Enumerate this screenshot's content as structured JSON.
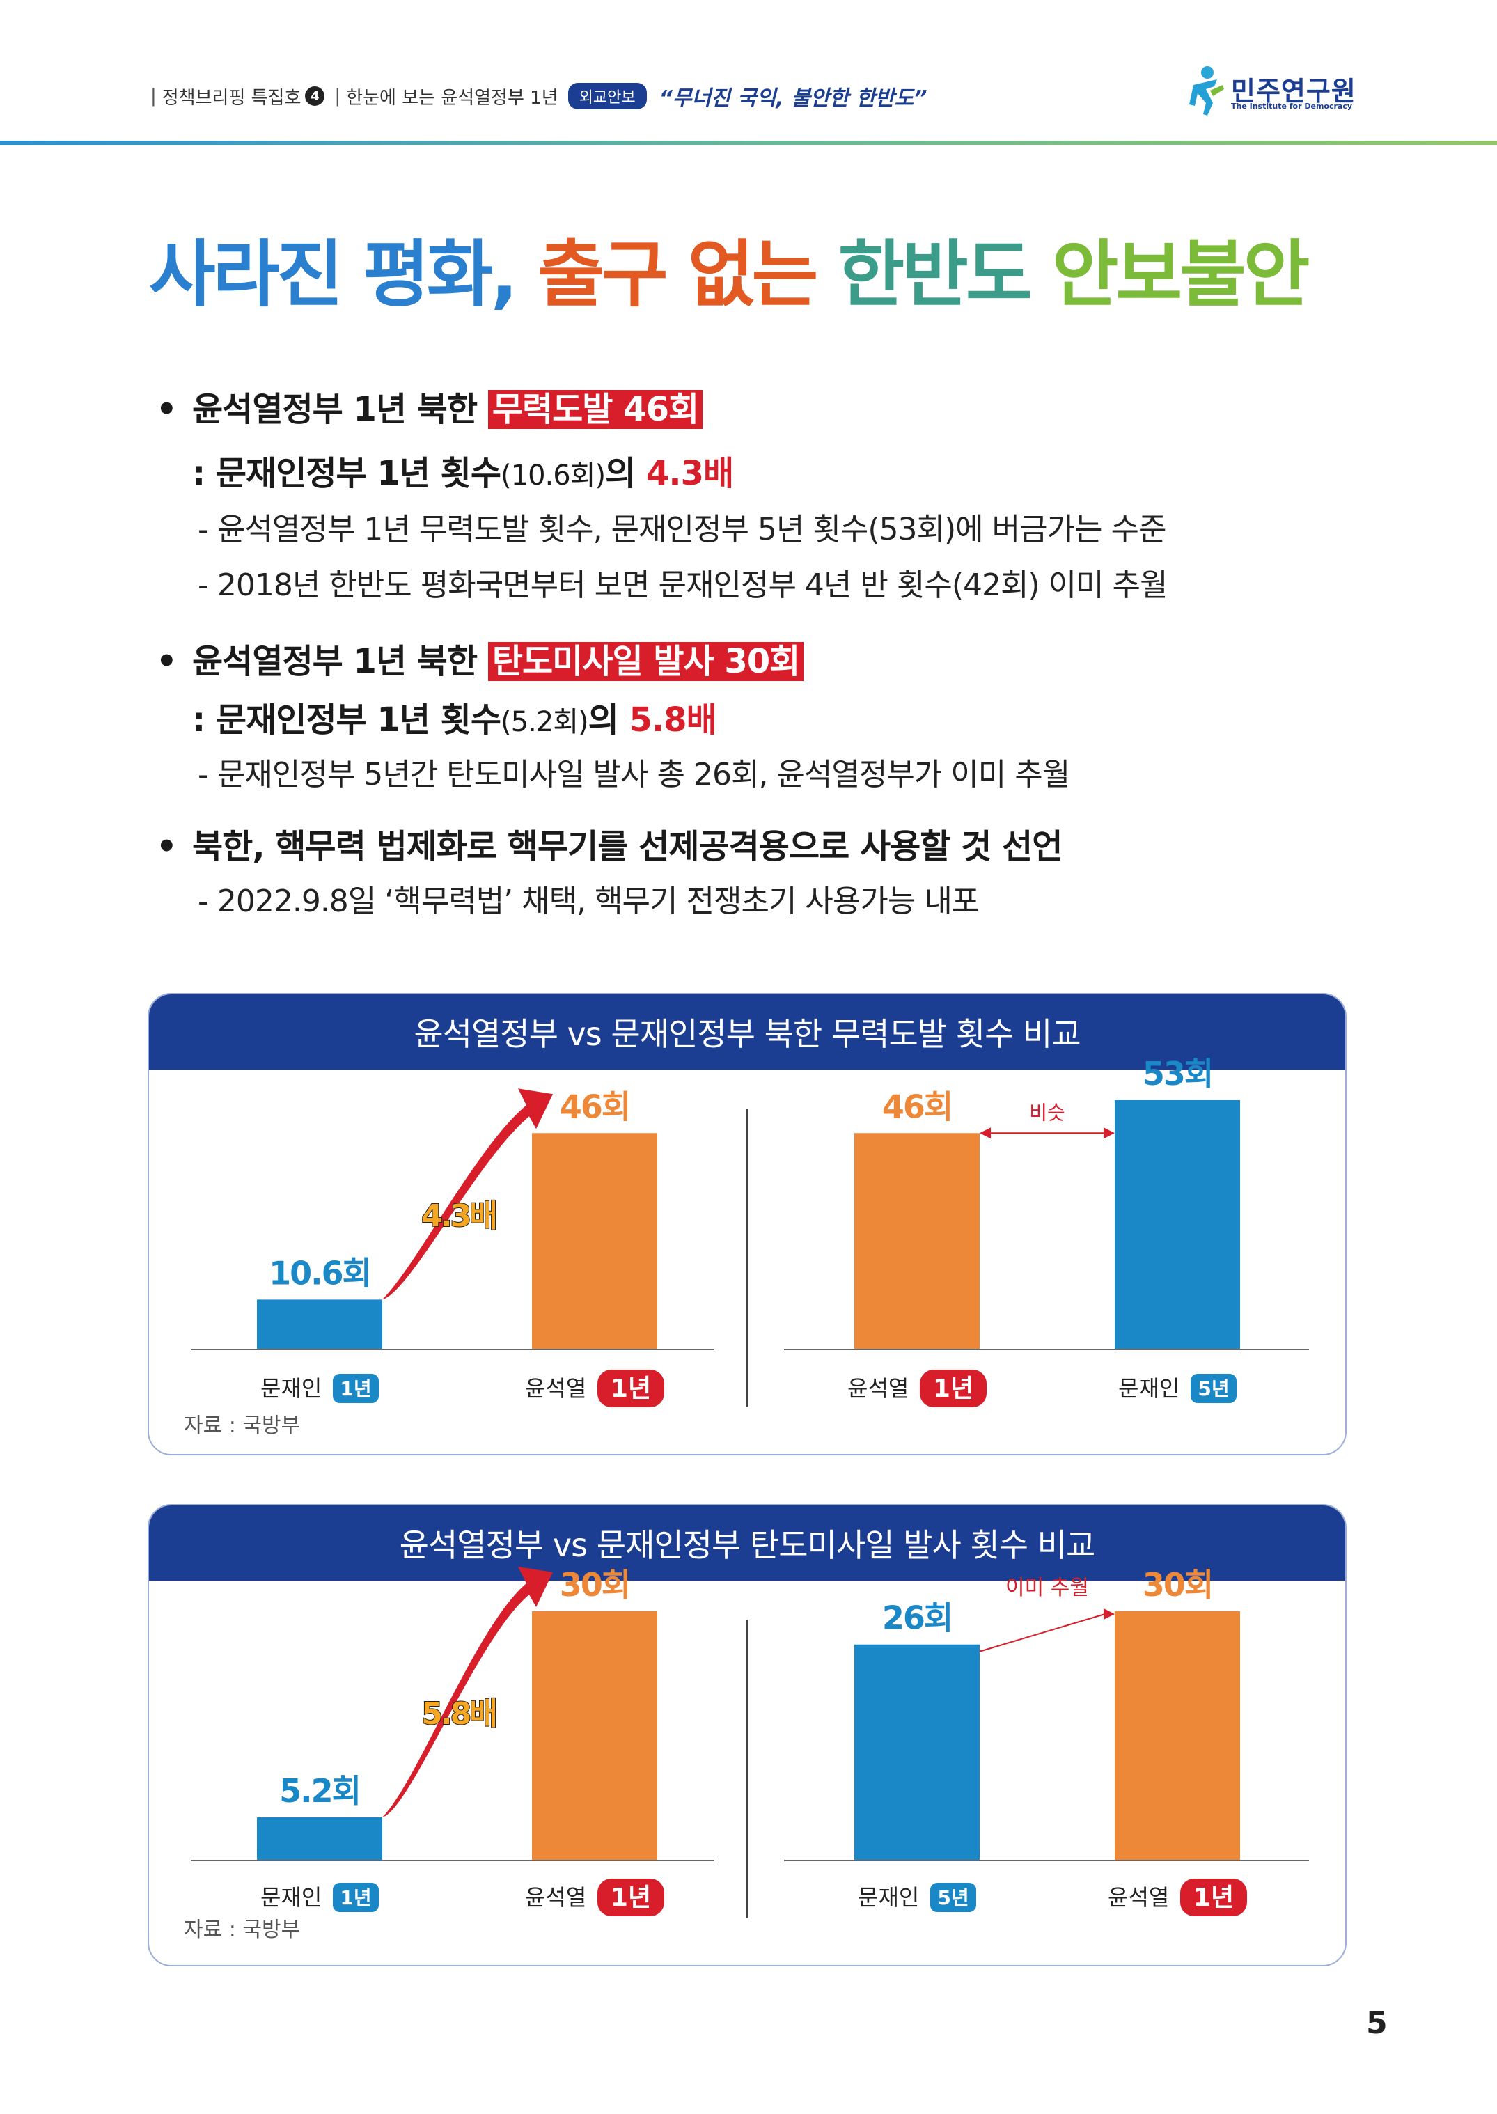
{
  "header": {
    "left": "정책브리핑 특집호",
    "issue_num": "4",
    "middle": "한눈에 보는 윤석열정부 1년",
    "tag": "외교안보",
    "quote": "“무너진 국익, 불안한 한반도”",
    "logo_name": "민주연구원",
    "logo_sub": "The Institute for Democracy"
  },
  "title": {
    "part1": "사라진 평화,",
    "part2": "출구 없는",
    "part3": "한반도",
    "part4": "안보불안"
  },
  "bullets": {
    "b1_lead": "윤석열정부 1년 북한",
    "b1_hl": "무력도발 46회",
    "b1_c_lead": ": 문재인정부 1년 횟수",
    "b1_c_paren": "(10.6회)",
    "b1_c_mid": "의",
    "b1_c_red": "4.3배",
    "b1_d1": "- 윤석열정부 1년 무력도발 횟수, 문재인정부 5년 횟수(53회)에 버금가는 수준",
    "b1_d2": "- 2018년 한반도 평화국면부터 보면 문재인정부 4년 반 횟수(42회) 이미 추월",
    "b2_lead": "윤석열정부 1년 북한",
    "b2_hl": "탄도미사일 발사 30회",
    "b2_c_lead": ": 문재인정부 1년 횟수",
    "b2_c_paren": "(5.2회)",
    "b2_c_mid": "의",
    "b2_c_red": "5.8배",
    "b2_d1": "- 문재인정부 5년간 탄도미사일 발사 총 26회, 윤석열정부가 이미 추월",
    "b3_lead": "북한, 핵무력 법제화로 핵무기를 선제공격용으로 사용할 것 선언",
    "b3_d1": "- 2022.9.8일 ‘핵무력법’ 채택, 핵무기 전쟁초기 사용가능 내포"
  },
  "box1": {
    "title": "윤석열정부 vs 문재인정부 북한 무력도발 횟수 비교",
    "source": "자료 : 국방부"
  },
  "box2": {
    "title": "윤석열정부 vs 문재인정부 탄도미사일 발사 횟수 비교",
    "source": "자료 : 국방부"
  },
  "colors": {
    "blue": "#1a88c6",
    "orange": "#ee8839",
    "red": "#d81e2a",
    "navy": "#1b3e93"
  },
  "chart_data": [
    {
      "type": "bar",
      "title": "윤석열정부 vs 문재인정부 북한 무력도발 횟수 비교",
      "categories": [
        "문재인 1년",
        "윤석열 1년"
      ],
      "cat_names": [
        "문재인",
        "윤석열"
      ],
      "cat_badges": [
        "1년",
        "1년"
      ],
      "values": [
        10.6,
        46
      ],
      "labels": [
        "10.6회",
        "46회"
      ],
      "colors": [
        "#1a88c6",
        "#ee8839"
      ],
      "badge_colors": [
        "#1a88c6",
        "#d81e2a"
      ],
      "annotation": "4.3배",
      "annotation_style": "arrow"
    },
    {
      "type": "bar",
      "title": "윤석열정부 vs 문재인정부 북한 무력도발 횟수 비교",
      "categories": [
        "윤석열 1년",
        "문재인 5년"
      ],
      "cat_names": [
        "윤석열",
        "문재인"
      ],
      "cat_badges": [
        "1년",
        "5년"
      ],
      "values": [
        46,
        53
      ],
      "labels": [
        "46회",
        "53회"
      ],
      "colors": [
        "#ee8839",
        "#1a88c6"
      ],
      "badge_colors": [
        "#d81e2a",
        "#1a88c6"
      ],
      "annotation": "비슷",
      "annotation_style": "double"
    },
    {
      "type": "bar",
      "title": "윤석열정부 vs 문재인정부 탄도미사일 발사 횟수 비교",
      "categories": [
        "문재인 1년",
        "윤석열 1년"
      ],
      "cat_names": [
        "문재인",
        "윤석열"
      ],
      "cat_badges": [
        "1년",
        "1년"
      ],
      "values": [
        5.2,
        30
      ],
      "labels": [
        "5.2회",
        "30회"
      ],
      "colors": [
        "#1a88c6",
        "#ee8839"
      ],
      "badge_colors": [
        "#1a88c6",
        "#d81e2a"
      ],
      "annotation": "5.8배",
      "annotation_style": "arrow"
    },
    {
      "type": "bar",
      "title": "윤석열정부 vs 문재인정부 탄도미사일 발사 횟수 비교",
      "categories": [
        "문재인 5년",
        "윤석열 1년"
      ],
      "cat_names": [
        "문재인",
        "윤석열"
      ],
      "cat_badges": [
        "5년",
        "1년"
      ],
      "values": [
        26,
        30
      ],
      "labels": [
        "26회",
        "30회"
      ],
      "colors": [
        "#1a88c6",
        "#ee8839"
      ],
      "badge_colors": [
        "#1a88c6",
        "#d81e2a"
      ],
      "annotation": "이미 추월",
      "annotation_style": "single"
    }
  ],
  "page_number": "5"
}
